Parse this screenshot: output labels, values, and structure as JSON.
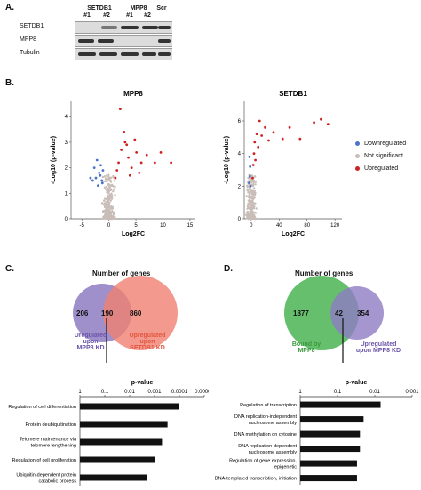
{
  "panel_a": {
    "letter": "A.",
    "lane_groups": [
      "SETDB1",
      "MPP8",
      "Scr"
    ],
    "lane_labels": [
      "#1",
      "#2",
      "#1",
      "#2"
    ],
    "row_labels": [
      "SETDB1",
      "MPP8",
      "Tubulin"
    ]
  },
  "panel_b": {
    "letter": "B.",
    "legend": [
      {
        "label": "Downregulated",
        "color": "#4a73c9"
      },
      {
        "label": "Not significant",
        "color": "#c9bdb8"
      },
      {
        "label": "Upregulated",
        "color": "#cc2222"
      }
    ]
  },
  "panel_c": {
    "letter": "C.",
    "venn_title": "Number of genes",
    "left_count": "206",
    "overlap_count": "190",
    "right_count": "860",
    "left_label": "UreguIated\nupon\nMPP8 KD",
    "right_label": "Upregulated\nupon\nSETDB1 KD",
    "left_color": "#8e7cc3",
    "right_color": "#f08070"
  },
  "panel_d": {
    "letter": "D.",
    "venn_title": "Number of genes",
    "left_count": "1877",
    "overlap_count": "42",
    "right_count": "354",
    "left_label": "Bound by\nMPP8",
    "right_label": "Upregulated\nupon MPP8 KD",
    "left_color": "#55b85c",
    "right_color": "#8e7cc3"
  },
  "chart_data": [
    {
      "type": "scatter",
      "title": "MPP8",
      "xlabel": "Log2FC",
      "ylabel": "-Log10 (p-value)",
      "xlim": [
        -7,
        16
      ],
      "ylim": [
        0,
        4.6
      ],
      "xticks": [
        -5,
        0,
        5,
        10,
        15
      ],
      "yticks": [
        0,
        1,
        2,
        3,
        4
      ],
      "series": [
        {
          "name": "Downregulated",
          "color": "#4a73c9",
          "x": [
            -1.2,
            -1.8,
            -2.4,
            -1.5,
            -3.0,
            -2.0,
            -1.1,
            -2.7,
            -1.6,
            -3.4,
            -1.3,
            -2.2
          ],
          "y": [
            1.4,
            1.8,
            1.6,
            2.1,
            1.5,
            1.3,
            1.9,
            2.0,
            1.7,
            1.6,
            1.5,
            2.3
          ]
        },
        {
          "name": "Upregulated",
          "color": "#cc2222",
          "x": [
            1.2,
            1.8,
            2.3,
            3.0,
            3.6,
            4.2,
            5.1,
            6.0,
            2.8,
            1.5,
            3.9,
            4.8,
            7.0,
            8.5,
            2.1,
            5.6,
            3.3,
            9.6,
            11.5
          ],
          "y": [
            1.6,
            2.2,
            2.7,
            3.0,
            2.4,
            2.0,
            2.6,
            2.2,
            3.4,
            1.9,
            1.7,
            3.1,
            2.5,
            2.2,
            4.3,
            1.8,
            2.9,
            2.6,
            2.2
          ]
        }
      ]
    },
    {
      "type": "scatter",
      "title": "SETDB1",
      "xlabel": "Log2FC",
      "ylabel": "-Log10 (p-value)",
      "xlim": [
        -10,
        130
      ],
      "ylim": [
        0,
        7.2
      ],
      "xticks": [
        0,
        40,
        80,
        120
      ],
      "yticks": [
        0,
        2,
        4,
        6
      ],
      "series": [
        {
          "name": "Downregulated",
          "color": "#4a73c9",
          "x": [
            -1,
            -2,
            -1.5,
            -3,
            -2.5
          ],
          "y": [
            2.0,
            2.6,
            3.2,
            2.2,
            3.8
          ]
        },
        {
          "name": "Upregulated",
          "color": "#cc2222",
          "x": [
            2,
            3,
            4,
            5,
            6,
            8,
            10,
            12,
            15,
            20,
            25,
            32,
            45,
            55,
            70,
            90,
            100,
            110
          ],
          "y": [
            2.5,
            3.3,
            4.0,
            4.7,
            3.6,
            5.2,
            4.4,
            6.0,
            5.1,
            5.6,
            4.8,
            5.3,
            4.9,
            5.6,
            4.9,
            5.9,
            6.1,
            5.8
          ]
        }
      ]
    },
    {
      "type": "bar",
      "title": "p-value",
      "orientation": "horizontal",
      "x_scale": "log-reciprocal",
      "xticks": [
        "1",
        "0.1",
        "0.01",
        "0.001",
        "0.0001",
        "0.00001"
      ],
      "categories": [
        "Regulation of cell differentiation",
        "Protein deubiquitination",
        "Telomere maintenance via\ntelomere lengthening",
        "Regulation of cell proliferation",
        "Ubiquitin-dependent protein\ncatabolic process"
      ],
      "values": [
        0.0001,
        0.0003,
        0.0005,
        0.001,
        0.002
      ]
    },
    {
      "type": "bar",
      "title": "p-value",
      "orientation": "horizontal",
      "x_scale": "log-reciprocal",
      "xticks": [
        "1",
        "0.1",
        "0.01",
        "0.001"
      ],
      "categories": [
        "Regulation of transcription",
        "DNA replication-independent\nnucleosome assembly",
        "DNA methylation on cytosine",
        "DNA replication-dependent\nnucleosome assembly",
        "Regulation of gene expression,\nepigenetic",
        "DNA-templated transcription, initiation"
      ],
      "values": [
        0.007,
        0.02,
        0.025,
        0.025,
        0.03,
        0.03
      ]
    }
  ]
}
